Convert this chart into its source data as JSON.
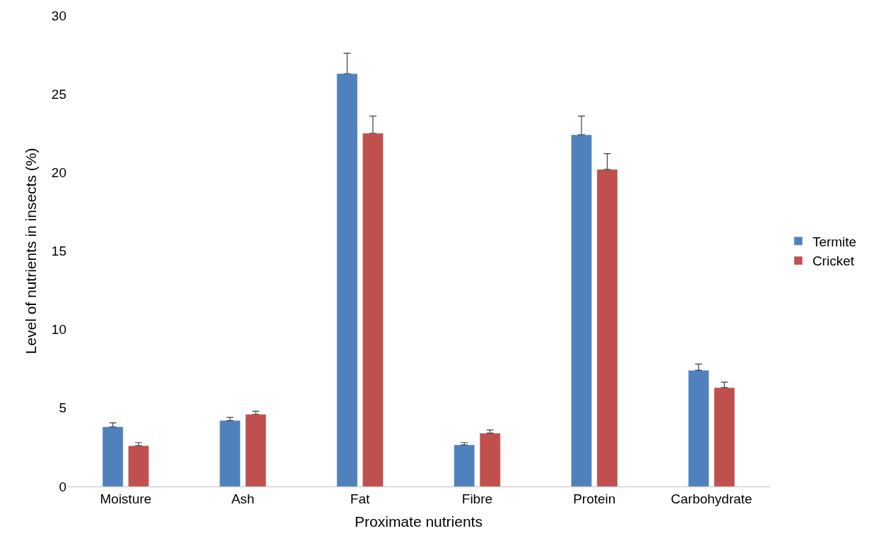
{
  "chart_data": {
    "type": "bar",
    "xlabel": "Proximate nutrients",
    "ylabel": "Level of nutrients in insects (%)",
    "categories": [
      "Moisture",
      "Ash",
      "Fat",
      "Fibre",
      "Protein",
      "Carbohydrate"
    ],
    "series": [
      {
        "name": "Termite",
        "color": "#4f81bd",
        "values": [
          3.8,
          4.2,
          26.3,
          2.65,
          22.4,
          7.4
        ],
        "errors": [
          [
            3.8,
            4.05
          ],
          [
            4.2,
            4.4
          ],
          [
            26.3,
            27.6
          ],
          [
            2.65,
            2.8
          ],
          [
            22.4,
            23.6
          ],
          [
            7.4,
            7.8
          ]
        ]
      },
      {
        "name": "Cricket",
        "color": "#c0504d",
        "values": [
          2.6,
          4.6,
          22.5,
          3.4,
          20.2,
          6.3
        ],
        "errors": [
          [
            2.6,
            2.8
          ],
          [
            4.6,
            4.8
          ],
          [
            22.5,
            23.6
          ],
          [
            3.4,
            3.6
          ],
          [
            20.2,
            21.2
          ],
          [
            6.3,
            6.65
          ]
        ]
      }
    ],
    "ylim": [
      0,
      30
    ],
    "yticks": [
      0,
      5,
      10,
      15,
      20,
      25,
      30
    ],
    "grid": false,
    "legend": "right"
  }
}
